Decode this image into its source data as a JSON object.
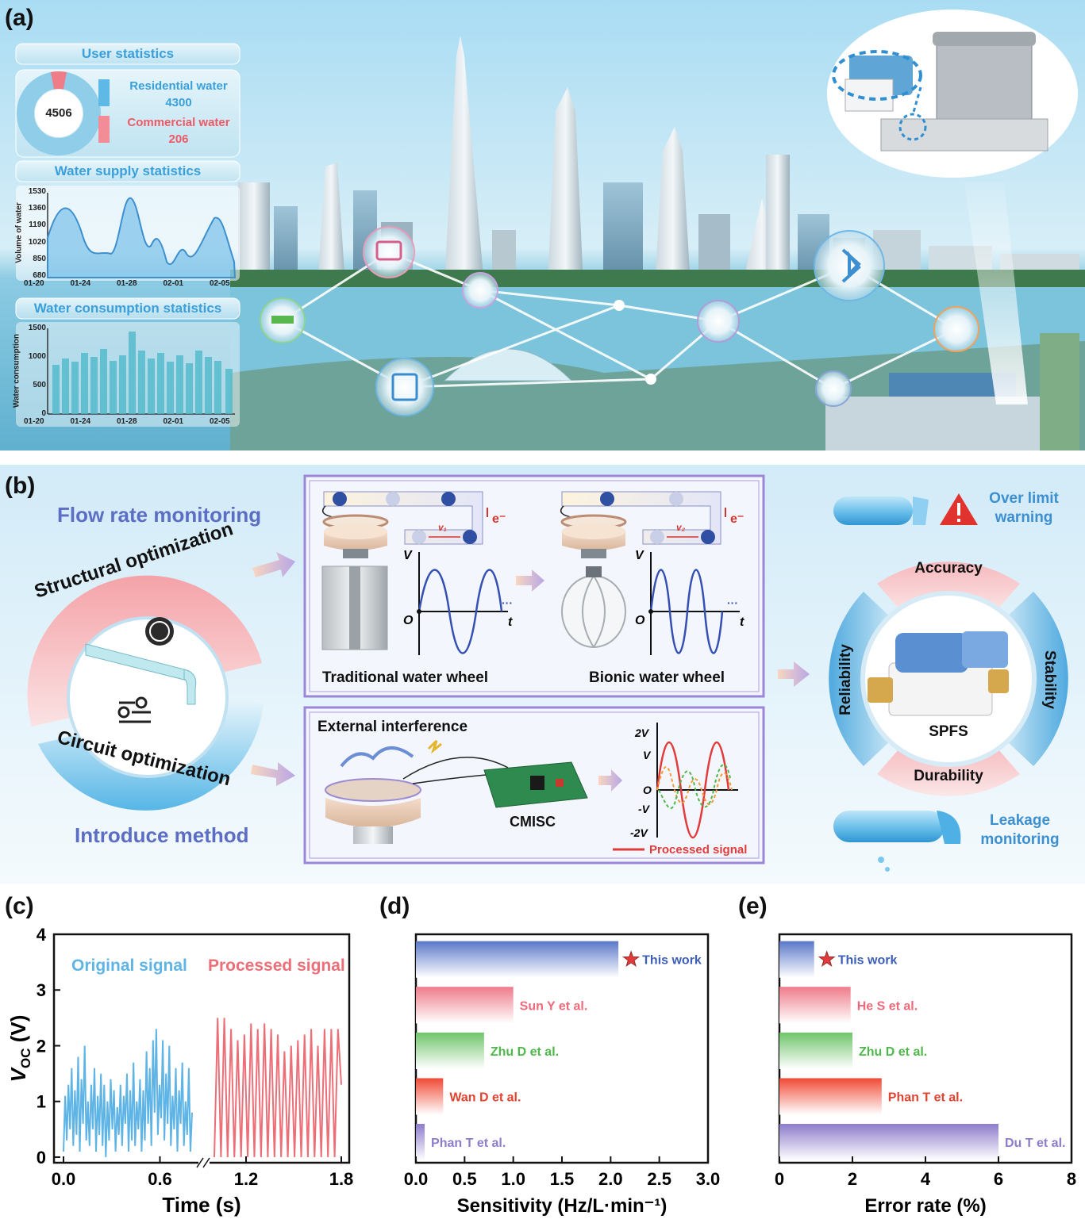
{
  "panel_a": {
    "label": "(a)",
    "user_stats": {
      "title": "User statistics",
      "total": "4506",
      "residential_label": "Residential water",
      "residential_value": "4300",
      "commercial_label": "Commercial water",
      "commercial_value": "206"
    },
    "supply_stats": {
      "title": "Water supply statistics",
      "ylabel": "Volume of water",
      "yticks": [
        "1530",
        "1360",
        "1190",
        "1020",
        "850",
        "680"
      ],
      "xticks": [
        "01-20",
        "01-24",
        "01-28",
        "02-01",
        "02-05"
      ]
    },
    "consumption_stats": {
      "title": "Water consumption statistics",
      "ylabel": "Water consumption",
      "yticks": [
        "1500",
        "1000",
        "500",
        "0"
      ],
      "xticks": [
        "01-20",
        "01-24",
        "01-28",
        "02-01",
        "02-05"
      ]
    }
  },
  "panel_b": {
    "label": "(b)",
    "flow_rate": "Flow rate monitoring",
    "structural": "Structural optimization",
    "circuit": "Circuit optimization",
    "introduce": "Introduce method",
    "traditional": "Traditional water wheel",
    "bionic": "Bionic water wheel",
    "v1": "v₁",
    "v2": "v₂",
    "electron": "e⁻",
    "axis_v": "V",
    "axis_o": "O",
    "axis_t": "t",
    "dots": "···",
    "external": "External interference",
    "cmisc": "CMISC",
    "sig_2v": "2V",
    "sig_v": "V",
    "sig_o": "O",
    "sig_mv": "-V",
    "sig_m2v": "-2V",
    "processed": "Processed signal",
    "over_limit_1": "Over limit",
    "over_limit_2": "warning",
    "leakage_1": "Leakage",
    "leakage_2": "monitoring",
    "accuracy": "Accuracy",
    "stability": "Stability",
    "durability": "Durability",
    "reliability": "Reliability",
    "spfs": "SPFS"
  },
  "chart_data": [
    {
      "panel": "(c)",
      "type": "line",
      "ylabel": "V_OC (V)",
      "ylabel_main": "V",
      "ylabel_sub": "OC",
      "ylabel_unit": " (V)",
      "xlabel": "Time (s)",
      "ylim": [
        -0.1,
        4
      ],
      "yticks": [
        0,
        1,
        2,
        3,
        4
      ],
      "xticks": [
        "0.0",
        "0.6",
        "1.2",
        "1.8"
      ],
      "annotations": {
        "original": "Original signal",
        "processed": "Processed signal"
      },
      "colors": {
        "original": "#5fb4e6",
        "processed": "#ec6f78"
      },
      "original_signal": {
        "time_range": [
          0,
          0.8
        ],
        "values": [
          0.1,
          1.1,
          0.3,
          1.3,
          0.5,
          1.6,
          0.2,
          1.2,
          0.4,
          1.8,
          0.1,
          1.4,
          0.6,
          2.0,
          0.3,
          1.0,
          0.2,
          1.3,
          0.5,
          1.6,
          0.1,
          1.1,
          0.4,
          1.5,
          0.2,
          1.3,
          0.0,
          1.0,
          0.3,
          1.4,
          0.5,
          1.2,
          0.1,
          0.9,
          0.4,
          1.3,
          0.2,
          1.1,
          0.6,
          1.5,
          0.1,
          1.2,
          0.3,
          1.7,
          0.2,
          1.0,
          0.5,
          1.4,
          0.1,
          1.2,
          0.3,
          1.9,
          0.6,
          1.6,
          0.2,
          2.1,
          0.8,
          2.3,
          0.4,
          1.3,
          0.7,
          2.1,
          0.3,
          1.5,
          0.6,
          2.0,
          0.2,
          1.1,
          0.5,
          1.6,
          0.1,
          1.2,
          0.6,
          1.7,
          0.2,
          1.0,
          0.4,
          1.6,
          0.1,
          0.8
        ]
      },
      "processed_signal": {
        "time_range": [
          1.0,
          1.8
        ],
        "peaks": [
          2.5,
          2.5,
          2.3,
          2.1,
          2.2,
          2.4,
          2.3,
          2.4,
          2.3,
          2.2,
          1.9,
          2.0,
          2.1,
          2.2,
          2.3,
          2.0,
          2.3,
          2.3,
          2.3
        ],
        "trough": 0.0
      }
    },
    {
      "panel": "(d)",
      "type": "bar",
      "orientation": "horizontal",
      "xlabel": "Sensitivity (Hz/L·min⁻¹)",
      "xlim": [
        0,
        3.0
      ],
      "xticks": [
        "0.0",
        "0.5",
        "1.0",
        "1.5",
        "2.0",
        "2.5",
        "3.0"
      ],
      "categories": [
        "This work",
        "Sun Y et al.",
        "Zhu D et al.",
        "Wan D et al.",
        "Phan T et al."
      ],
      "values": [
        2.08,
        1.0,
        0.7,
        0.28,
        0.09
      ],
      "colors": [
        "#5a78c8",
        "#ee7b8a",
        "#6fc46a",
        "#f04a35",
        "#8e7ccb"
      ]
    },
    {
      "panel": "(e)",
      "type": "bar",
      "orientation": "horizontal",
      "xlabel": "Error rate (%)",
      "xlim": [
        0,
        8
      ],
      "xticks": [
        "0",
        "2",
        "4",
        "6",
        "8"
      ],
      "categories": [
        "This work",
        "He S et al.",
        "Zhu D et al.",
        "Phan T et al.",
        "Du T et al."
      ],
      "values": [
        0.95,
        1.95,
        2.0,
        2.8,
        6.0
      ],
      "colors": [
        "#5a78c8",
        "#ee7b8a",
        "#6fc46a",
        "#f04a35",
        "#8e7ccb"
      ]
    }
  ]
}
